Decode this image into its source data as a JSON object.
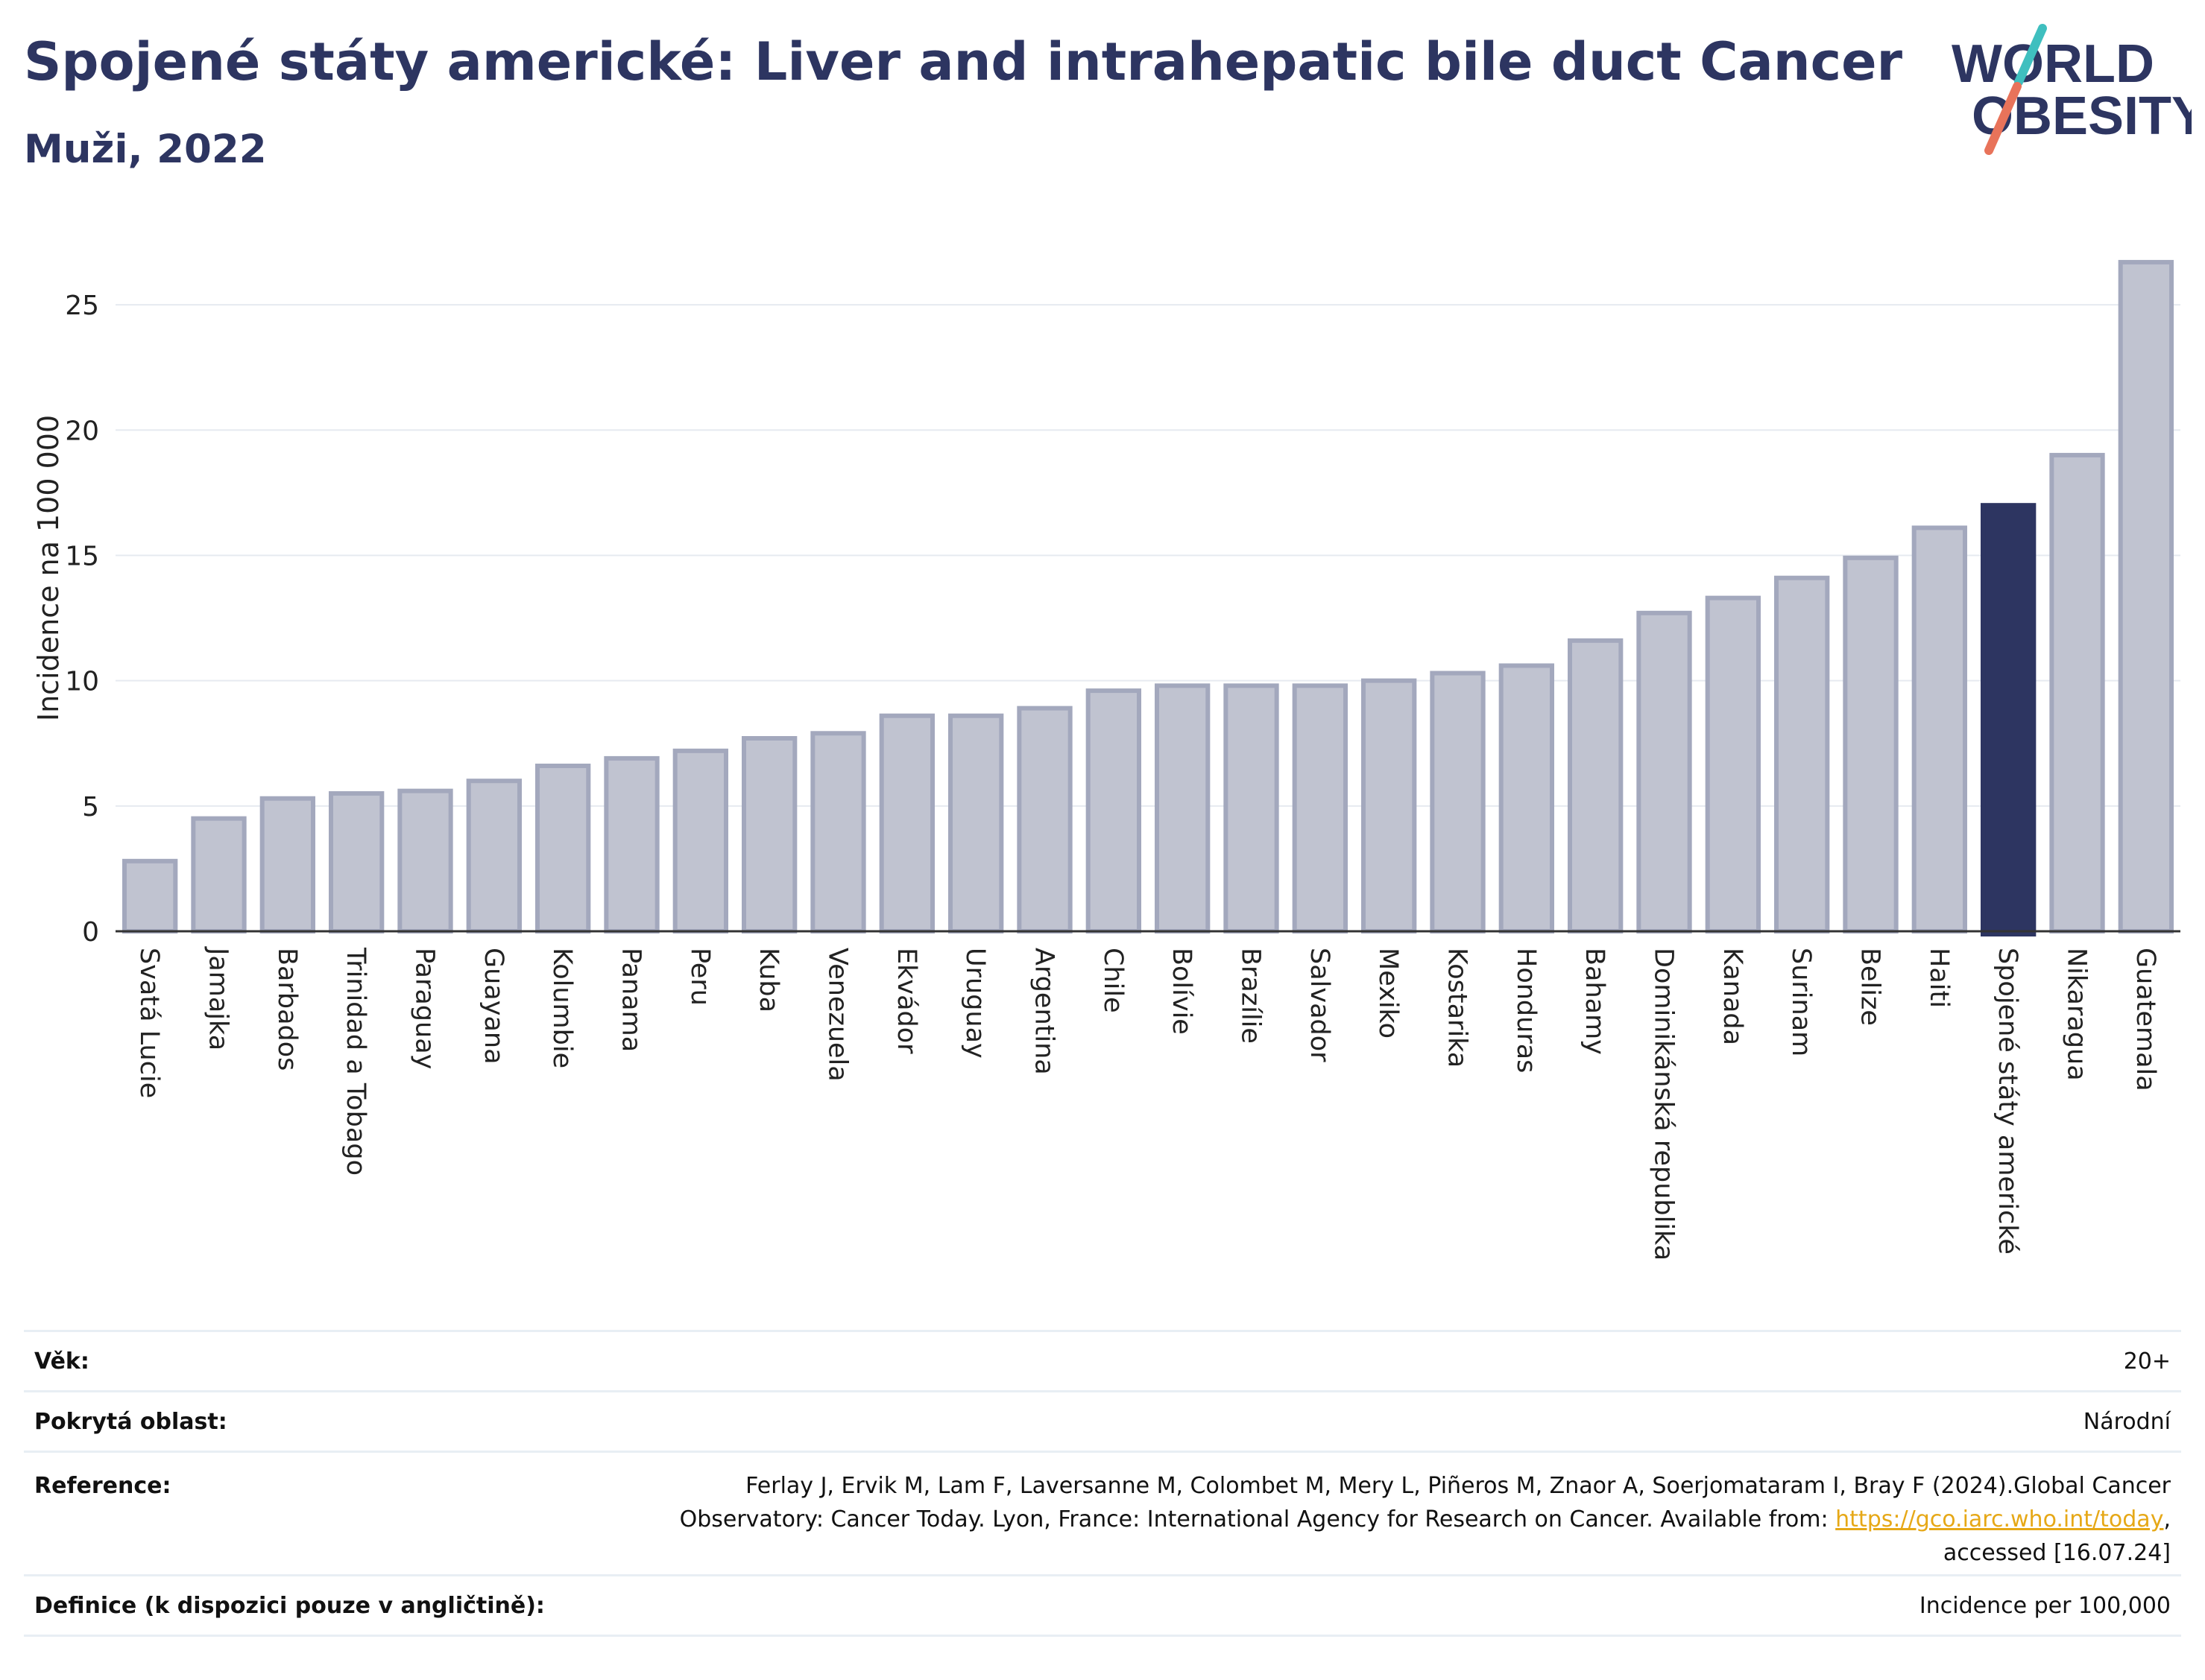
{
  "header": {
    "title": "Spojené státy americké: Liver and intrahepatic bile duct Cancer",
    "subtitle": "Muži, 2022"
  },
  "logo": {
    "line1": "WORLD",
    "line2": "OBESITY",
    "colors": {
      "text": "#2d3561",
      "slash_teal": "#3fbfbf",
      "slash_coral": "#e8735a"
    }
  },
  "chart_data": {
    "type": "bar",
    "title": "Spojené státy americké: Liver and intrahepatic bile duct Cancer",
    "subtitle": "Muži, 2022",
    "ylabel": "Incidence na 100 000",
    "xlabel": "",
    "ylim": [
      0,
      27.5
    ],
    "yticks": [
      0,
      5,
      10,
      15,
      20,
      25
    ],
    "grid": true,
    "highlight": "Spojené státy americké",
    "colors": {
      "bar": "#c0c3d0",
      "bar_stroke": "#a3a8bd",
      "highlight": "#2d3561"
    },
    "categories": [
      "Svatá Lucie",
      "Jamajka",
      "Barbados",
      "Trinidad a Tobago",
      "Paraguay",
      "Guayana",
      "Kolumbie",
      "Panama",
      "Peru",
      "Kuba",
      "Venezuela",
      "Ekvádor",
      "Uruguay",
      "Argentina",
      "Chile",
      "Bolívie",
      "Brazílie",
      "Salvador",
      "Mexiko",
      "Kostarika",
      "Honduras",
      "Bahamy",
      "Dominikánská republika",
      "Kanada",
      "Surinam",
      "Belize",
      "Haiti",
      "Spojené státy americké",
      "Nikaragua",
      "Guatemala"
    ],
    "values": [
      2.8,
      4.5,
      5.3,
      5.5,
      5.6,
      6.0,
      6.6,
      6.9,
      7.2,
      7.7,
      7.9,
      8.6,
      8.6,
      8.9,
      9.6,
      9.8,
      9.8,
      9.8,
      10.0,
      10.3,
      10.6,
      11.6,
      12.7,
      13.3,
      14.1,
      14.9,
      16.1,
      17.0,
      19.0,
      26.7
    ]
  },
  "meta": {
    "age_label": "Věk:",
    "age_value": "20+",
    "area_label": "Pokrytá oblast:",
    "area_value": "Národní",
    "reference_label": "Reference:",
    "reference_line1": "Ferlay J, Ervik M, Lam F, Laversanne M, Colombet M, Mery L, Piñeros M, Znaor A, Soerjomataram I, Bray F (2024).Global Cancer",
    "reference_line2_pre": "Observatory: Cancer Today. Lyon, France: International Agency for Research on Cancer. Available from: ",
    "reference_link": "https://gco.iarc.who.int/today",
    "reference_line2_post": ",",
    "reference_line3": "accessed [16.07.24]",
    "definition_label": "Definice (k dispozici pouze v angličtině):",
    "definition_value": "Incidence per 100,000"
  }
}
